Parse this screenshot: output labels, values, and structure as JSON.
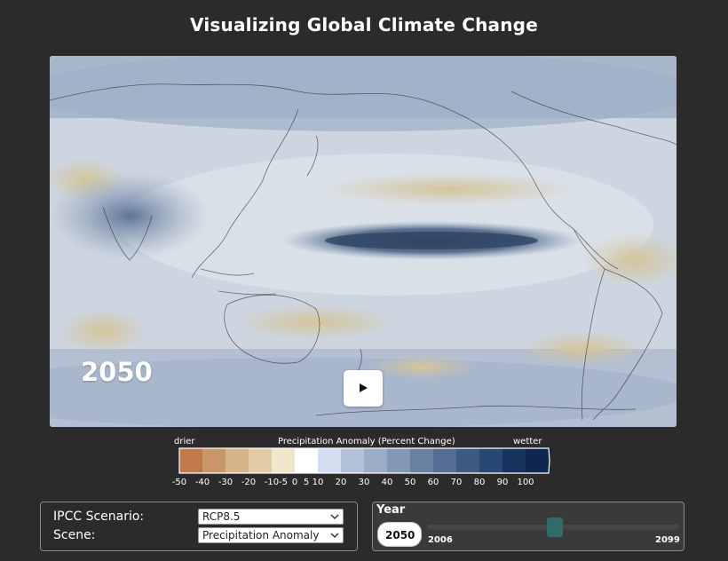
{
  "page": {
    "title": "Visualizing Global Climate Change"
  },
  "map": {
    "year_label": "2050",
    "play_icon": "play-icon",
    "colors": {
      "background_neutral": "#c9d2de",
      "land_outline": "#2a2a2a",
      "wet_band": "#3f5673",
      "dry_tan": "#c8b98c"
    }
  },
  "legend": {
    "title": "Precipitation Anomaly (Percent Change)",
    "left_label": "drier",
    "right_label": "wetter",
    "ticks": [
      "-50",
      "-40",
      "-30",
      "-20",
      "-10",
      "-5",
      "0",
      "5",
      "10",
      "20",
      "30",
      "40",
      "50",
      "60",
      "70",
      "80",
      "90",
      "100"
    ],
    "colors": [
      "#c1794a",
      "#c9966a",
      "#d7b38a",
      "#e2cca6",
      "#efe6cc",
      "#ffffff",
      "#d5def0",
      "#b4c2d8",
      "#9aacc6",
      "#8398b5",
      "#6a82a2",
      "#536e92",
      "#3c5a82",
      "#284773",
      "#19335f",
      "#0f2750"
    ]
  },
  "controls": {
    "scenario_label": "IPCC Scenario:",
    "scenario_value": "RCP8.5",
    "scene_label": "Scene:",
    "scene_value": "Precipitation Anomaly",
    "chevron_icon": "chevron-down-icon"
  },
  "year_control": {
    "title": "Year",
    "value": "2050",
    "min_label": "2006",
    "max_label": "2099",
    "min": 2006,
    "max": 2099,
    "current": 2050,
    "thumb_color": "#2f6b68"
  }
}
